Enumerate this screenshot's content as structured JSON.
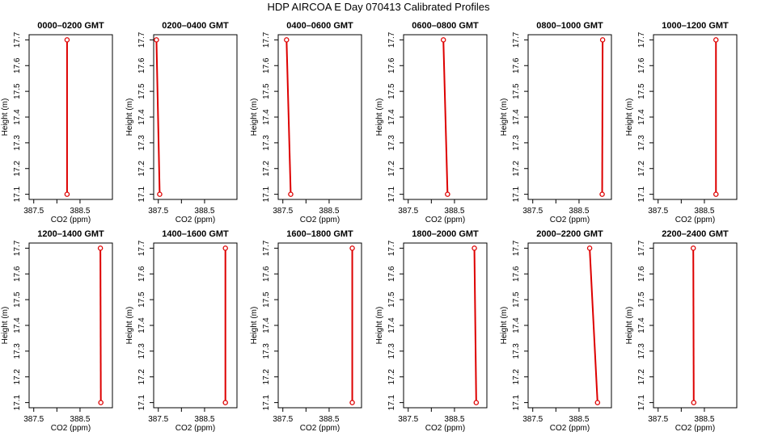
{
  "title": "HDP AIRCOA E  Day 070413  Calibrated Profiles",
  "colors": {
    "profile": "#dd0000",
    "axis": "#000000"
  },
  "chart_data": [
    {
      "type": "line",
      "title": "0000–0200 GMT",
      "xlabel": "CO2 (ppm)",
      "ylabel": "Height (m)",
      "xlim": [
        387.4,
        389.2
      ],
      "ylim": [
        17.08,
        17.72
      ],
      "xticks": [
        387.5,
        388.5
      ],
      "yticks": [
        17.1,
        17.2,
        17.3,
        17.4,
        17.5,
        17.6,
        17.7
      ],
      "series": [
        {
          "x": [
            388.22,
            388.22
          ],
          "y": [
            17.1,
            17.7
          ]
        }
      ]
    },
    {
      "type": "line",
      "title": "0200–0400 GMT",
      "xlabel": "CO2 (ppm)",
      "ylabel": "Height (m)",
      "xlim": [
        387.4,
        389.2
      ],
      "ylim": [
        17.08,
        17.72
      ],
      "xticks": [
        387.5,
        388.5
      ],
      "yticks": [
        17.1,
        17.2,
        17.3,
        17.4,
        17.5,
        17.6,
        17.7
      ],
      "series": [
        {
          "x": [
            387.53,
            387.46
          ],
          "y": [
            17.1,
            17.7
          ]
        }
      ]
    },
    {
      "type": "line",
      "title": "0400–0600 GMT",
      "xlabel": "CO2 (ppm)",
      "ylabel": "Height (m)",
      "xlim": [
        387.4,
        389.2
      ],
      "ylim": [
        17.08,
        17.72
      ],
      "xticks": [
        387.5,
        388.5
      ],
      "yticks": [
        17.1,
        17.2,
        17.3,
        17.4,
        17.5,
        17.6,
        17.7
      ],
      "series": [
        {
          "x": [
            387.67,
            387.58
          ],
          "y": [
            17.1,
            17.7
          ]
        }
      ]
    },
    {
      "type": "line",
      "title": "0600–0800 GMT",
      "xlabel": "CO2 (ppm)",
      "ylabel": "Height (m)",
      "xlim": [
        387.4,
        389.2
      ],
      "ylim": [
        17.08,
        17.72
      ],
      "xticks": [
        387.5,
        388.5
      ],
      "yticks": [
        17.1,
        17.2,
        17.3,
        17.4,
        17.5,
        17.6,
        17.7
      ],
      "series": [
        {
          "x": [
            388.35,
            388.26
          ],
          "y": [
            17.1,
            17.7
          ]
        }
      ]
    },
    {
      "type": "line",
      "title": "0800–1000 GMT",
      "xlabel": "CO2 (ppm)",
      "ylabel": "Height (m)",
      "xlim": [
        387.4,
        389.2
      ],
      "ylim": [
        17.08,
        17.72
      ],
      "xticks": [
        387.5,
        388.5
      ],
      "yticks": [
        17.1,
        17.2,
        17.3,
        17.4,
        17.5,
        17.6,
        17.7
      ],
      "series": [
        {
          "x": [
            389.0,
            389.01
          ],
          "y": [
            17.1,
            17.7
          ]
        }
      ]
    },
    {
      "type": "line",
      "title": "1000–1200 GMT",
      "xlabel": "CO2 (ppm)",
      "ylabel": "Height (m)",
      "xlim": [
        387.4,
        389.2
      ],
      "ylim": [
        17.08,
        17.72
      ],
      "xticks": [
        387.5,
        388.5
      ],
      "yticks": [
        17.1,
        17.2,
        17.3,
        17.4,
        17.5,
        17.6,
        17.7
      ],
      "series": [
        {
          "x": [
            388.75,
            388.75
          ],
          "y": [
            17.1,
            17.7
          ]
        }
      ]
    },
    {
      "type": "line",
      "title": "1200–1400 GMT",
      "xlabel": "CO2 (ppm)",
      "ylabel": "Height (m)",
      "xlim": [
        387.4,
        389.2
      ],
      "ylim": [
        17.08,
        17.72
      ],
      "xticks": [
        387.5,
        388.5
      ],
      "yticks": [
        17.1,
        17.2,
        17.3,
        17.4,
        17.5,
        17.6,
        17.7
      ],
      "series": [
        {
          "x": [
            388.95,
            388.94
          ],
          "y": [
            17.1,
            17.7
          ]
        }
      ]
    },
    {
      "type": "line",
      "title": "1400–1600 GMT",
      "xlabel": "CO2 (ppm)",
      "ylabel": "Height (m)",
      "xlim": [
        387.4,
        389.2
      ],
      "ylim": [
        17.08,
        17.72
      ],
      "xticks": [
        387.5,
        388.5
      ],
      "yticks": [
        17.1,
        17.2,
        17.3,
        17.4,
        17.5,
        17.6,
        17.7
      ],
      "series": [
        {
          "x": [
            388.95,
            388.95
          ],
          "y": [
            17.1,
            17.7
          ]
        }
      ]
    },
    {
      "type": "line",
      "title": "1600–1800 GMT",
      "xlabel": "CO2 (ppm)",
      "ylabel": "Height (m)",
      "xlim": [
        387.4,
        389.2
      ],
      "ylim": [
        17.08,
        17.72
      ],
      "xticks": [
        387.5,
        388.5
      ],
      "yticks": [
        17.1,
        17.2,
        17.3,
        17.4,
        17.5,
        17.6,
        17.7
      ],
      "series": [
        {
          "x": [
            389.0,
            389.0
          ],
          "y": [
            17.1,
            17.7
          ]
        }
      ]
    },
    {
      "type": "line",
      "title": "1800–2000 GMT",
      "xlabel": "CO2 (ppm)",
      "ylabel": "Height (m)",
      "xlim": [
        387.4,
        389.2
      ],
      "ylim": [
        17.08,
        17.72
      ],
      "xticks": [
        387.5,
        388.5
      ],
      "yticks": [
        17.1,
        17.2,
        17.3,
        17.4,
        17.5,
        17.6,
        17.7
      ],
      "series": [
        {
          "x": [
            388.97,
            388.93
          ],
          "y": [
            17.1,
            17.7
          ]
        }
      ]
    },
    {
      "type": "line",
      "title": "2000–2200 GMT",
      "xlabel": "CO2 (ppm)",
      "ylabel": "Height (m)",
      "xlim": [
        387.4,
        389.2
      ],
      "ylim": [
        17.08,
        17.72
      ],
      "xticks": [
        387.5,
        388.5
      ],
      "yticks": [
        17.1,
        17.2,
        17.3,
        17.4,
        17.5,
        17.6,
        17.7
      ],
      "series": [
        {
          "x": [
            388.9,
            388.73
          ],
          "y": [
            17.1,
            17.7
          ]
        }
      ]
    },
    {
      "type": "line",
      "title": "2200–2400 GMT",
      "xlabel": "CO2 (ppm)",
      "ylabel": "Height (m)",
      "xlim": [
        387.4,
        389.2
      ],
      "ylim": [
        17.08,
        17.72
      ],
      "xticks": [
        387.5,
        388.5
      ],
      "yticks": [
        17.1,
        17.2,
        17.3,
        17.4,
        17.5,
        17.6,
        17.7
      ],
      "series": [
        {
          "x": [
            388.27,
            388.26
          ],
          "y": [
            17.1,
            17.7
          ]
        }
      ]
    }
  ]
}
